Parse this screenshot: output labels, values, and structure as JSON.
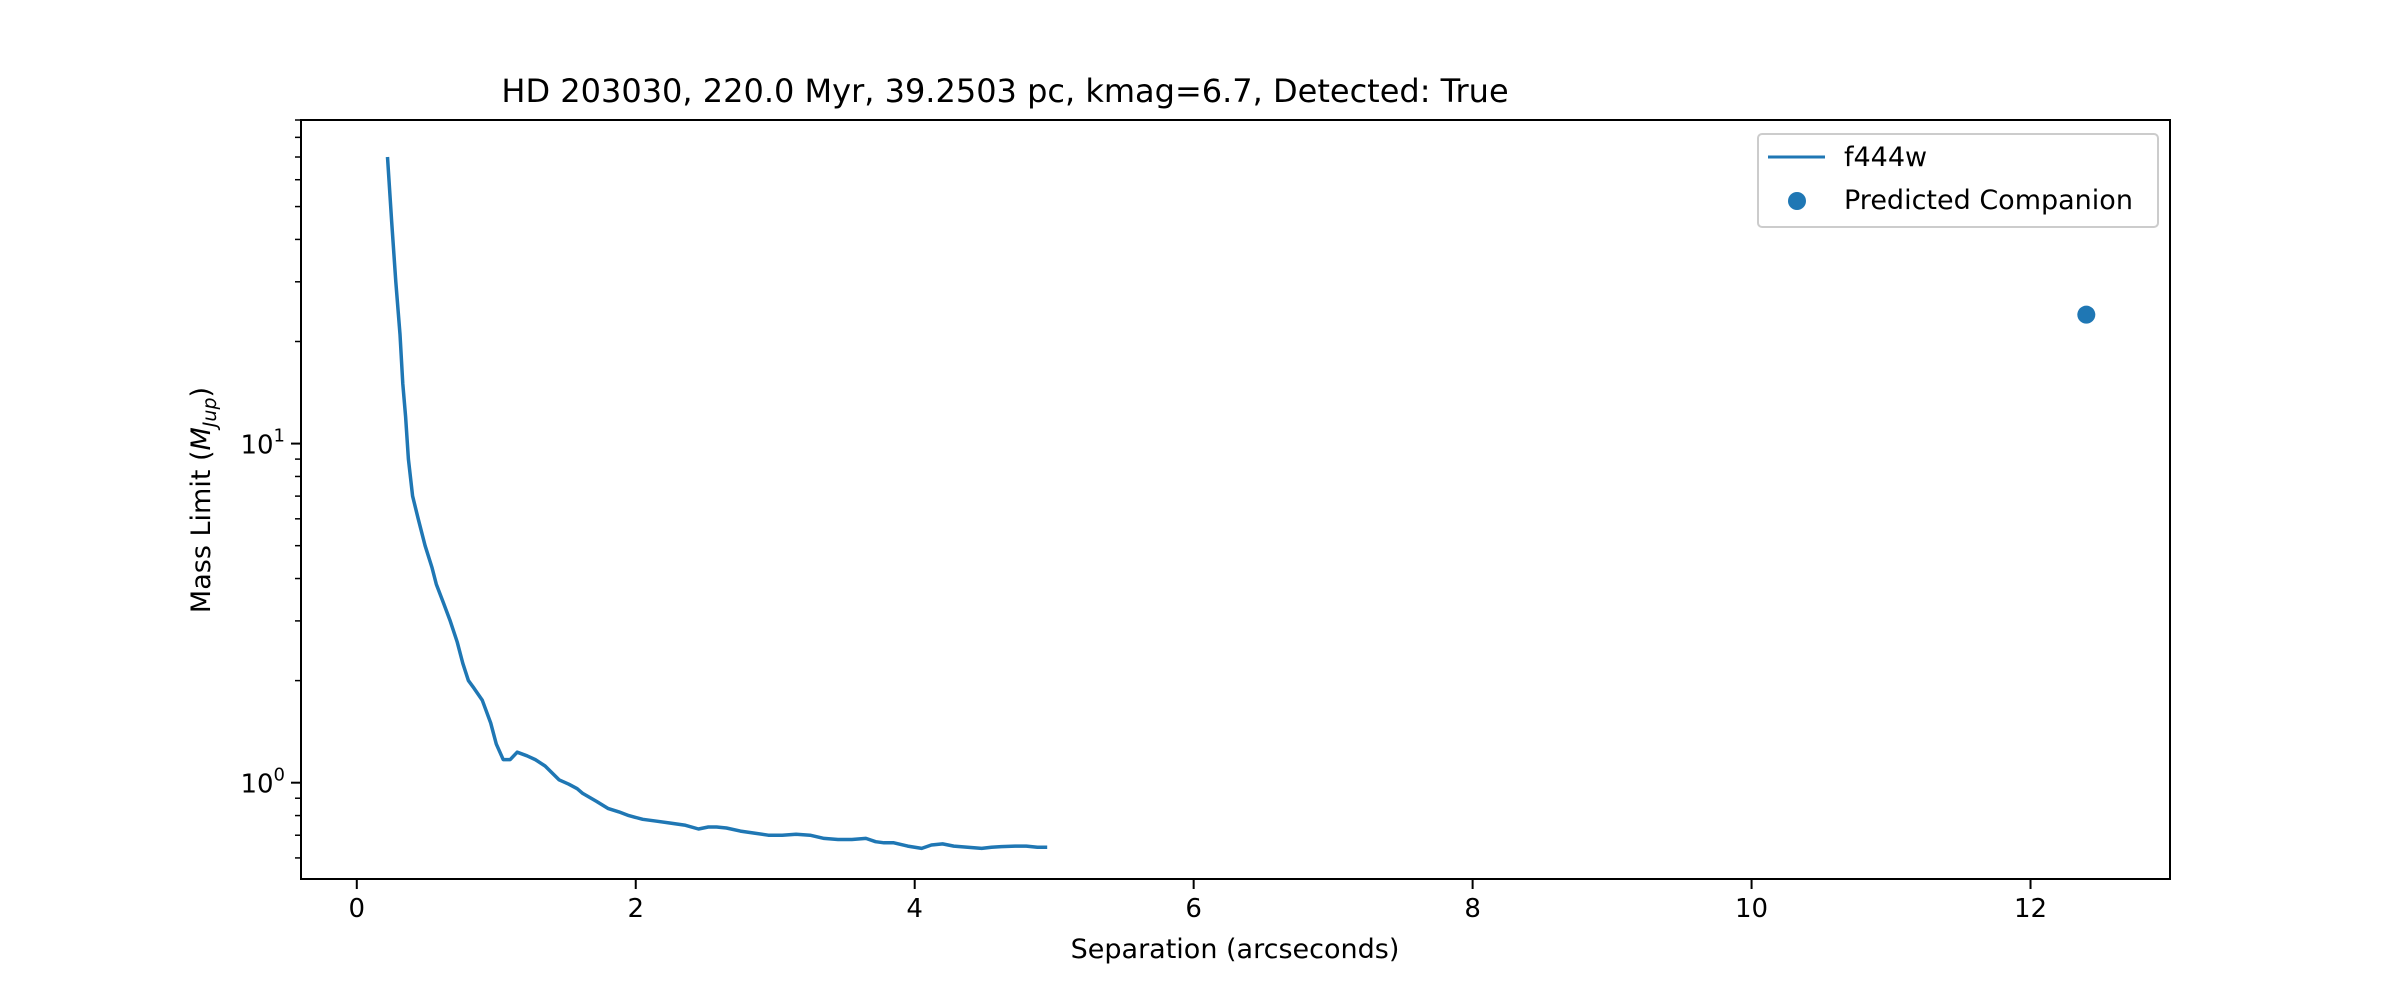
{
  "chart_data": {
    "type": "line",
    "title": "HD 203030, 220.0 Myr, 39.2503 pc, kmag=6.7, Detected: True",
    "xlabel": "Separation (arcseconds)",
    "ylabel_prefix": "Mass Limit (",
    "ylabel_math": "M",
    "ylabel_sub": "Jup",
    "ylabel_suffix": ")",
    "xlim": [
      -0.4,
      13.0
    ],
    "ylim": [
      0.52,
      90
    ],
    "yscale": "log",
    "grid": false,
    "legend_position": "top-right",
    "x_ticks": [
      {
        "value": 0,
        "label": "0"
      },
      {
        "value": 2,
        "label": "2"
      },
      {
        "value": 4,
        "label": "4"
      },
      {
        "value": 6,
        "label": "6"
      },
      {
        "value": 8,
        "label": "8"
      },
      {
        "value": 10,
        "label": "10"
      },
      {
        "value": 12,
        "label": "12"
      }
    ],
    "y_major_ticks": [
      {
        "value": 1,
        "base": "10",
        "exp": "0"
      },
      {
        "value": 10,
        "base": "10",
        "exp": "1"
      }
    ],
    "series": [
      {
        "name": "f444w",
        "kind": "line",
        "color": "#1f77b4",
        "x": [
          0.22,
          0.25,
          0.28,
          0.31,
          0.33,
          0.35,
          0.37,
          0.4,
          0.44,
          0.49,
          0.54,
          0.57,
          0.62,
          0.67,
          0.72,
          0.76,
          0.8,
          0.84,
          0.9,
          0.96,
          1.0,
          1.05,
          1.1,
          1.15,
          1.22,
          1.28,
          1.35,
          1.45,
          1.52,
          1.58,
          1.62,
          1.72,
          1.8,
          1.88,
          1.95,
          2.05,
          2.15,
          2.25,
          2.35,
          2.45,
          2.52,
          2.58,
          2.65,
          2.75,
          2.85,
          2.95,
          3.05,
          3.15,
          3.25,
          3.35,
          3.45,
          3.55,
          3.65,
          3.72,
          3.78,
          3.85,
          3.95,
          4.05,
          4.12,
          4.2,
          4.28,
          4.38,
          4.48,
          4.55,
          4.62,
          4.72,
          4.8,
          4.88,
          4.95
        ],
        "y": [
          70,
          45,
          30,
          21,
          15,
          12,
          9.0,
          7.0,
          6.0,
          5.0,
          4.3,
          3.85,
          3.4,
          3.0,
          2.6,
          2.25,
          2.0,
          1.9,
          1.75,
          1.5,
          1.3,
          1.17,
          1.17,
          1.23,
          1.2,
          1.17,
          1.12,
          1.02,
          0.99,
          0.96,
          0.93,
          0.88,
          0.84,
          0.82,
          0.8,
          0.78,
          0.77,
          0.76,
          0.75,
          0.73,
          0.74,
          0.74,
          0.735,
          0.72,
          0.71,
          0.7,
          0.7,
          0.705,
          0.7,
          0.685,
          0.68,
          0.68,
          0.685,
          0.67,
          0.665,
          0.665,
          0.65,
          0.64,
          0.655,
          0.66,
          0.65,
          0.645,
          0.64,
          0.645,
          0.648,
          0.65,
          0.65,
          0.645,
          0.645
        ]
      },
      {
        "name": "Predicted Companion",
        "kind": "scatter",
        "color": "#1f77b4",
        "x": [
          12.4
        ],
        "y": [
          24
        ]
      }
    ]
  }
}
